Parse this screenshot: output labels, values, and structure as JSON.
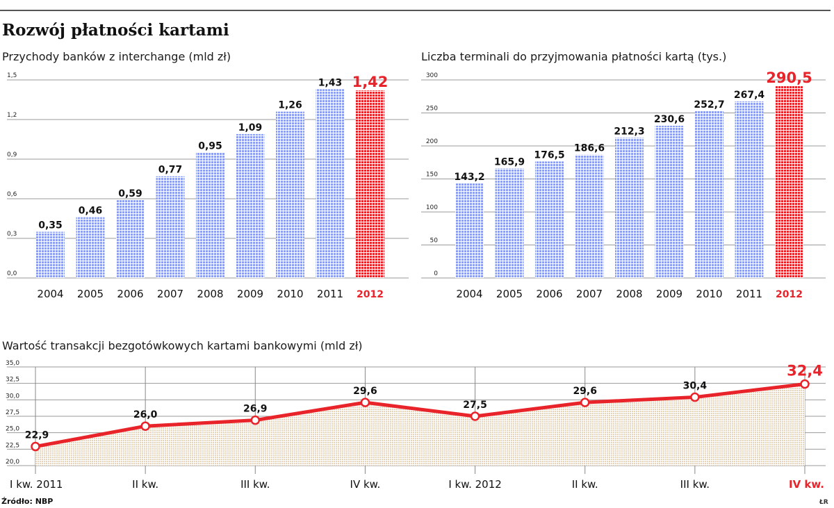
{
  "title": "Rozwój płatności kartami",
  "source": "Źródło: NBP",
  "credit": "ŁR",
  "colors": {
    "bar": "#8e9ff0",
    "highlight": "#e8232a",
    "line": "#e8232a",
    "area": "#e9d8c2",
    "grid": "#9a9a9a"
  },
  "chart_data": [
    {
      "type": "bar",
      "title": "Przychody banków z interchange (mld zł)",
      "categories": [
        "2004",
        "2005",
        "2006",
        "2007",
        "2008",
        "2009",
        "2010",
        "2011",
        "2012"
      ],
      "values": [
        0.35,
        0.46,
        0.59,
        0.77,
        0.95,
        1.09,
        1.26,
        1.43,
        1.42
      ],
      "value_labels": [
        "0,35",
        "0,46",
        "0,59",
        "0,77",
        "0,95",
        "1,09",
        "1,26",
        "1,43",
        "1,42"
      ],
      "highlight_index": 8,
      "ylim": [
        0,
        1.5
      ],
      "yticks": [
        0,
        0.3,
        0.6,
        0.9,
        1.2,
        1.5
      ],
      "ytick_labels": [
        "0,0",
        "0,3",
        "0,6",
        "0,9",
        "1,2",
        "1,5"
      ],
      "grid": true
    },
    {
      "type": "bar",
      "title": "Liczba terminali do przyjmowania płatności kartą (tys.)",
      "categories": [
        "2004",
        "2005",
        "2006",
        "2007",
        "2008",
        "2009",
        "2010",
        "2011",
        "2012"
      ],
      "values": [
        143.2,
        165.9,
        176.5,
        186.6,
        212.3,
        230.6,
        252.7,
        267.4,
        290.5
      ],
      "value_labels": [
        "143,2",
        "165,9",
        "176,5",
        "186,6",
        "212,3",
        "230,6",
        "252,7",
        "267,4",
        "290,5"
      ],
      "highlight_index": 8,
      "ylim": [
        0,
        300
      ],
      "yticks": [
        0,
        50,
        100,
        150,
        200,
        250,
        300
      ],
      "ytick_labels": [
        "0",
        "50",
        "100",
        "150",
        "200",
        "250",
        "300"
      ],
      "grid": true
    },
    {
      "type": "line",
      "title": "Wartość transakcji bezgotówkowych kartami bankowymi (mld zł)",
      "categories": [
        "I kw. 2011",
        "II kw.",
        "III kw.",
        "IV kw.",
        "I kw. 2012",
        "II kw.",
        "III kw.",
        "IV kw."
      ],
      "values": [
        22.9,
        26.0,
        26.9,
        29.6,
        27.5,
        29.6,
        30.4,
        32.4
      ],
      "value_labels": [
        "22,9",
        "26,0",
        "26,9",
        "29,6",
        "27,5",
        "29,6",
        "30,4",
        "32,4"
      ],
      "highlight_index": 7,
      "ylim": [
        20,
        35
      ],
      "yticks": [
        20,
        22.5,
        25,
        27.5,
        30,
        32.5,
        35
      ],
      "ytick_labels": [
        "20,0",
        "22,5",
        "25,0",
        "27,5",
        "30,0",
        "32,5",
        "35,0"
      ],
      "grid": true,
      "area_fill": true
    }
  ]
}
